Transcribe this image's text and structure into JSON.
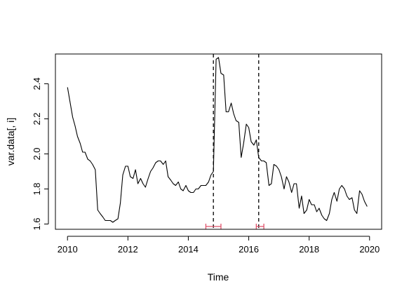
{
  "chart_data": {
    "type": "line",
    "title": "",
    "xlabel": "Time",
    "ylabel": "var.data[, i]",
    "xlim": [
      2009.6,
      2020.4
    ],
    "ylim": [
      1.57,
      2.57
    ],
    "xticks": [
      2010,
      2012,
      2014,
      2016,
      2018,
      2020
    ],
    "xtick_labels": [
      "2010",
      "2012",
      "2014",
      "2016",
      "2018",
      "2020"
    ],
    "yticks": [
      1.6,
      1.8,
      2.0,
      2.2,
      2.4
    ],
    "ytick_labels": [
      "1.6",
      "1.8",
      "2.0",
      "2.2",
      "2.4"
    ],
    "grid": false,
    "series": [
      {
        "x": [
          2010.0,
          2010.08,
          2010.17,
          2010.25,
          2010.33,
          2010.42,
          2010.5,
          2010.58,
          2010.67,
          2010.75,
          2010.83,
          2010.92,
          2011.0,
          2011.08,
          2011.17,
          2011.25,
          2011.33,
          2011.42,
          2011.5,
          2011.58,
          2011.67,
          2011.75,
          2011.83,
          2011.92,
          2012.0,
          2012.08,
          2012.17,
          2012.25,
          2012.33,
          2012.42,
          2012.5,
          2012.58,
          2012.67,
          2012.75,
          2012.83,
          2012.92,
          2013.0,
          2013.08,
          2013.17,
          2013.25,
          2013.33,
          2013.42,
          2013.5,
          2013.58,
          2013.67,
          2013.75,
          2013.83,
          2013.92,
          2014.0,
          2014.08,
          2014.17,
          2014.25,
          2014.33,
          2014.42,
          2014.5,
          2014.58,
          2014.67,
          2014.75,
          2014.83,
          2014.92,
          2015.0,
          2015.08,
          2015.17,
          2015.25,
          2015.33,
          2015.42,
          2015.5,
          2015.58,
          2015.67,
          2015.75,
          2015.83,
          2015.92,
          2016.0,
          2016.08,
          2016.17,
          2016.25,
          2016.33,
          2016.42,
          2016.5,
          2016.58,
          2016.67,
          2016.75,
          2016.83,
          2016.92,
          2017.0,
          2017.08,
          2017.17,
          2017.25,
          2017.33,
          2017.42,
          2017.5,
          2017.58,
          2017.67,
          2017.75,
          2017.83,
          2017.92,
          2018.0,
          2018.08,
          2018.17,
          2018.25,
          2018.33,
          2018.42,
          2018.5,
          2018.58,
          2018.67,
          2018.75,
          2018.83,
          2018.92,
          2019.0,
          2019.08,
          2019.17,
          2019.25,
          2019.33,
          2019.42,
          2019.5,
          2019.58,
          2019.67,
          2019.75,
          2019.83,
          2019.92
        ],
        "y": [
          2.38,
          2.3,
          2.21,
          2.16,
          2.1,
          2.06,
          2.01,
          2.01,
          1.97,
          1.96,
          1.94,
          1.91,
          1.68,
          1.66,
          1.64,
          1.62,
          1.62,
          1.62,
          1.61,
          1.62,
          1.63,
          1.72,
          1.88,
          1.93,
          1.93,
          1.87,
          1.86,
          1.91,
          1.83,
          1.86,
          1.83,
          1.81,
          1.86,
          1.9,
          1.92,
          1.95,
          1.96,
          1.96,
          1.94,
          1.96,
          1.87,
          1.85,
          1.83,
          1.82,
          1.84,
          1.8,
          1.79,
          1.82,
          1.79,
          1.78,
          1.78,
          1.8,
          1.8,
          1.82,
          1.82,
          1.82,
          1.84,
          1.88,
          1.9,
          2.54,
          2.55,
          2.46,
          2.45,
          2.24,
          2.24,
          2.29,
          2.23,
          2.19,
          2.18,
          1.98,
          2.06,
          2.17,
          2.15,
          2.07,
          2.05,
          2.08,
          1.98,
          1.96,
          1.96,
          1.95,
          1.82,
          1.83,
          1.94,
          1.93,
          1.91,
          1.87,
          1.8,
          1.87,
          1.84,
          1.78,
          1.83,
          1.83,
          1.69,
          1.76,
          1.66,
          1.68,
          1.74,
          1.71,
          1.71,
          1.67,
          1.69,
          1.65,
          1.63,
          1.62,
          1.66,
          1.74,
          1.78,
          1.73,
          1.8,
          1.82,
          1.8,
          1.76,
          1.74,
          1.75,
          1.68,
          1.66,
          1.79,
          1.77,
          1.73,
          1.7
        ]
      }
    ],
    "vlines": [
      2014.83,
      2016.33
    ],
    "vline_style": "dashed",
    "breakpoint_intervals": [
      {
        "low": 2014.58,
        "high": 2015.08
      },
      {
        "low": 2016.25,
        "high": 2016.5
      }
    ],
    "interval_color": "#df536b",
    "line_color": "#000000"
  }
}
